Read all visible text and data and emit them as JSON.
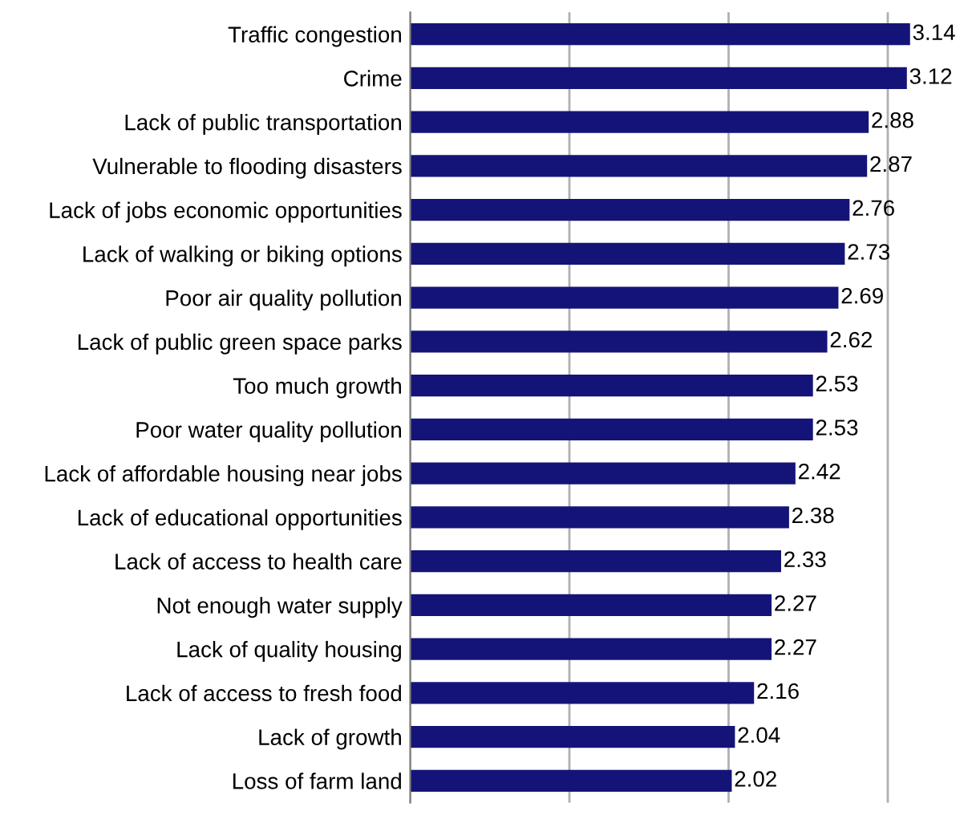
{
  "chart_data": {
    "type": "bar",
    "orientation": "horizontal",
    "categories": [
      "Traffic congestion",
      "Crime",
      "Lack of public transportation",
      "Vulnerable to flooding disasters",
      "Lack of jobs economic opportunities",
      "Lack of walking or biking options",
      "Poor air quality pollution",
      "Lack of public green space parks",
      "Too much growth",
      "Poor water quality pollution",
      "Lack of affordable housing near jobs",
      "Lack of educational opportunities",
      "Lack of access to health care",
      "Not enough water supply",
      "Lack of quality housing",
      "Lack of access to fresh food",
      "Lack of growth",
      "Loss of farm land"
    ],
    "values": [
      3.14,
      3.12,
      2.88,
      2.87,
      2.76,
      2.73,
      2.69,
      2.62,
      2.53,
      2.53,
      2.42,
      2.38,
      2.33,
      2.27,
      2.27,
      2.16,
      2.04,
      2.02
    ],
    "color": "#141478",
    "xticks": [
      {
        "value": 0,
        "label": null
      },
      {
        "value": 1,
        "label": null
      },
      {
        "value": 2,
        "label": null
      },
      {
        "value": 3,
        "label": null
      }
    ],
    "grid": "x",
    "tick_labels": "y",
    "data_labels": true
  }
}
